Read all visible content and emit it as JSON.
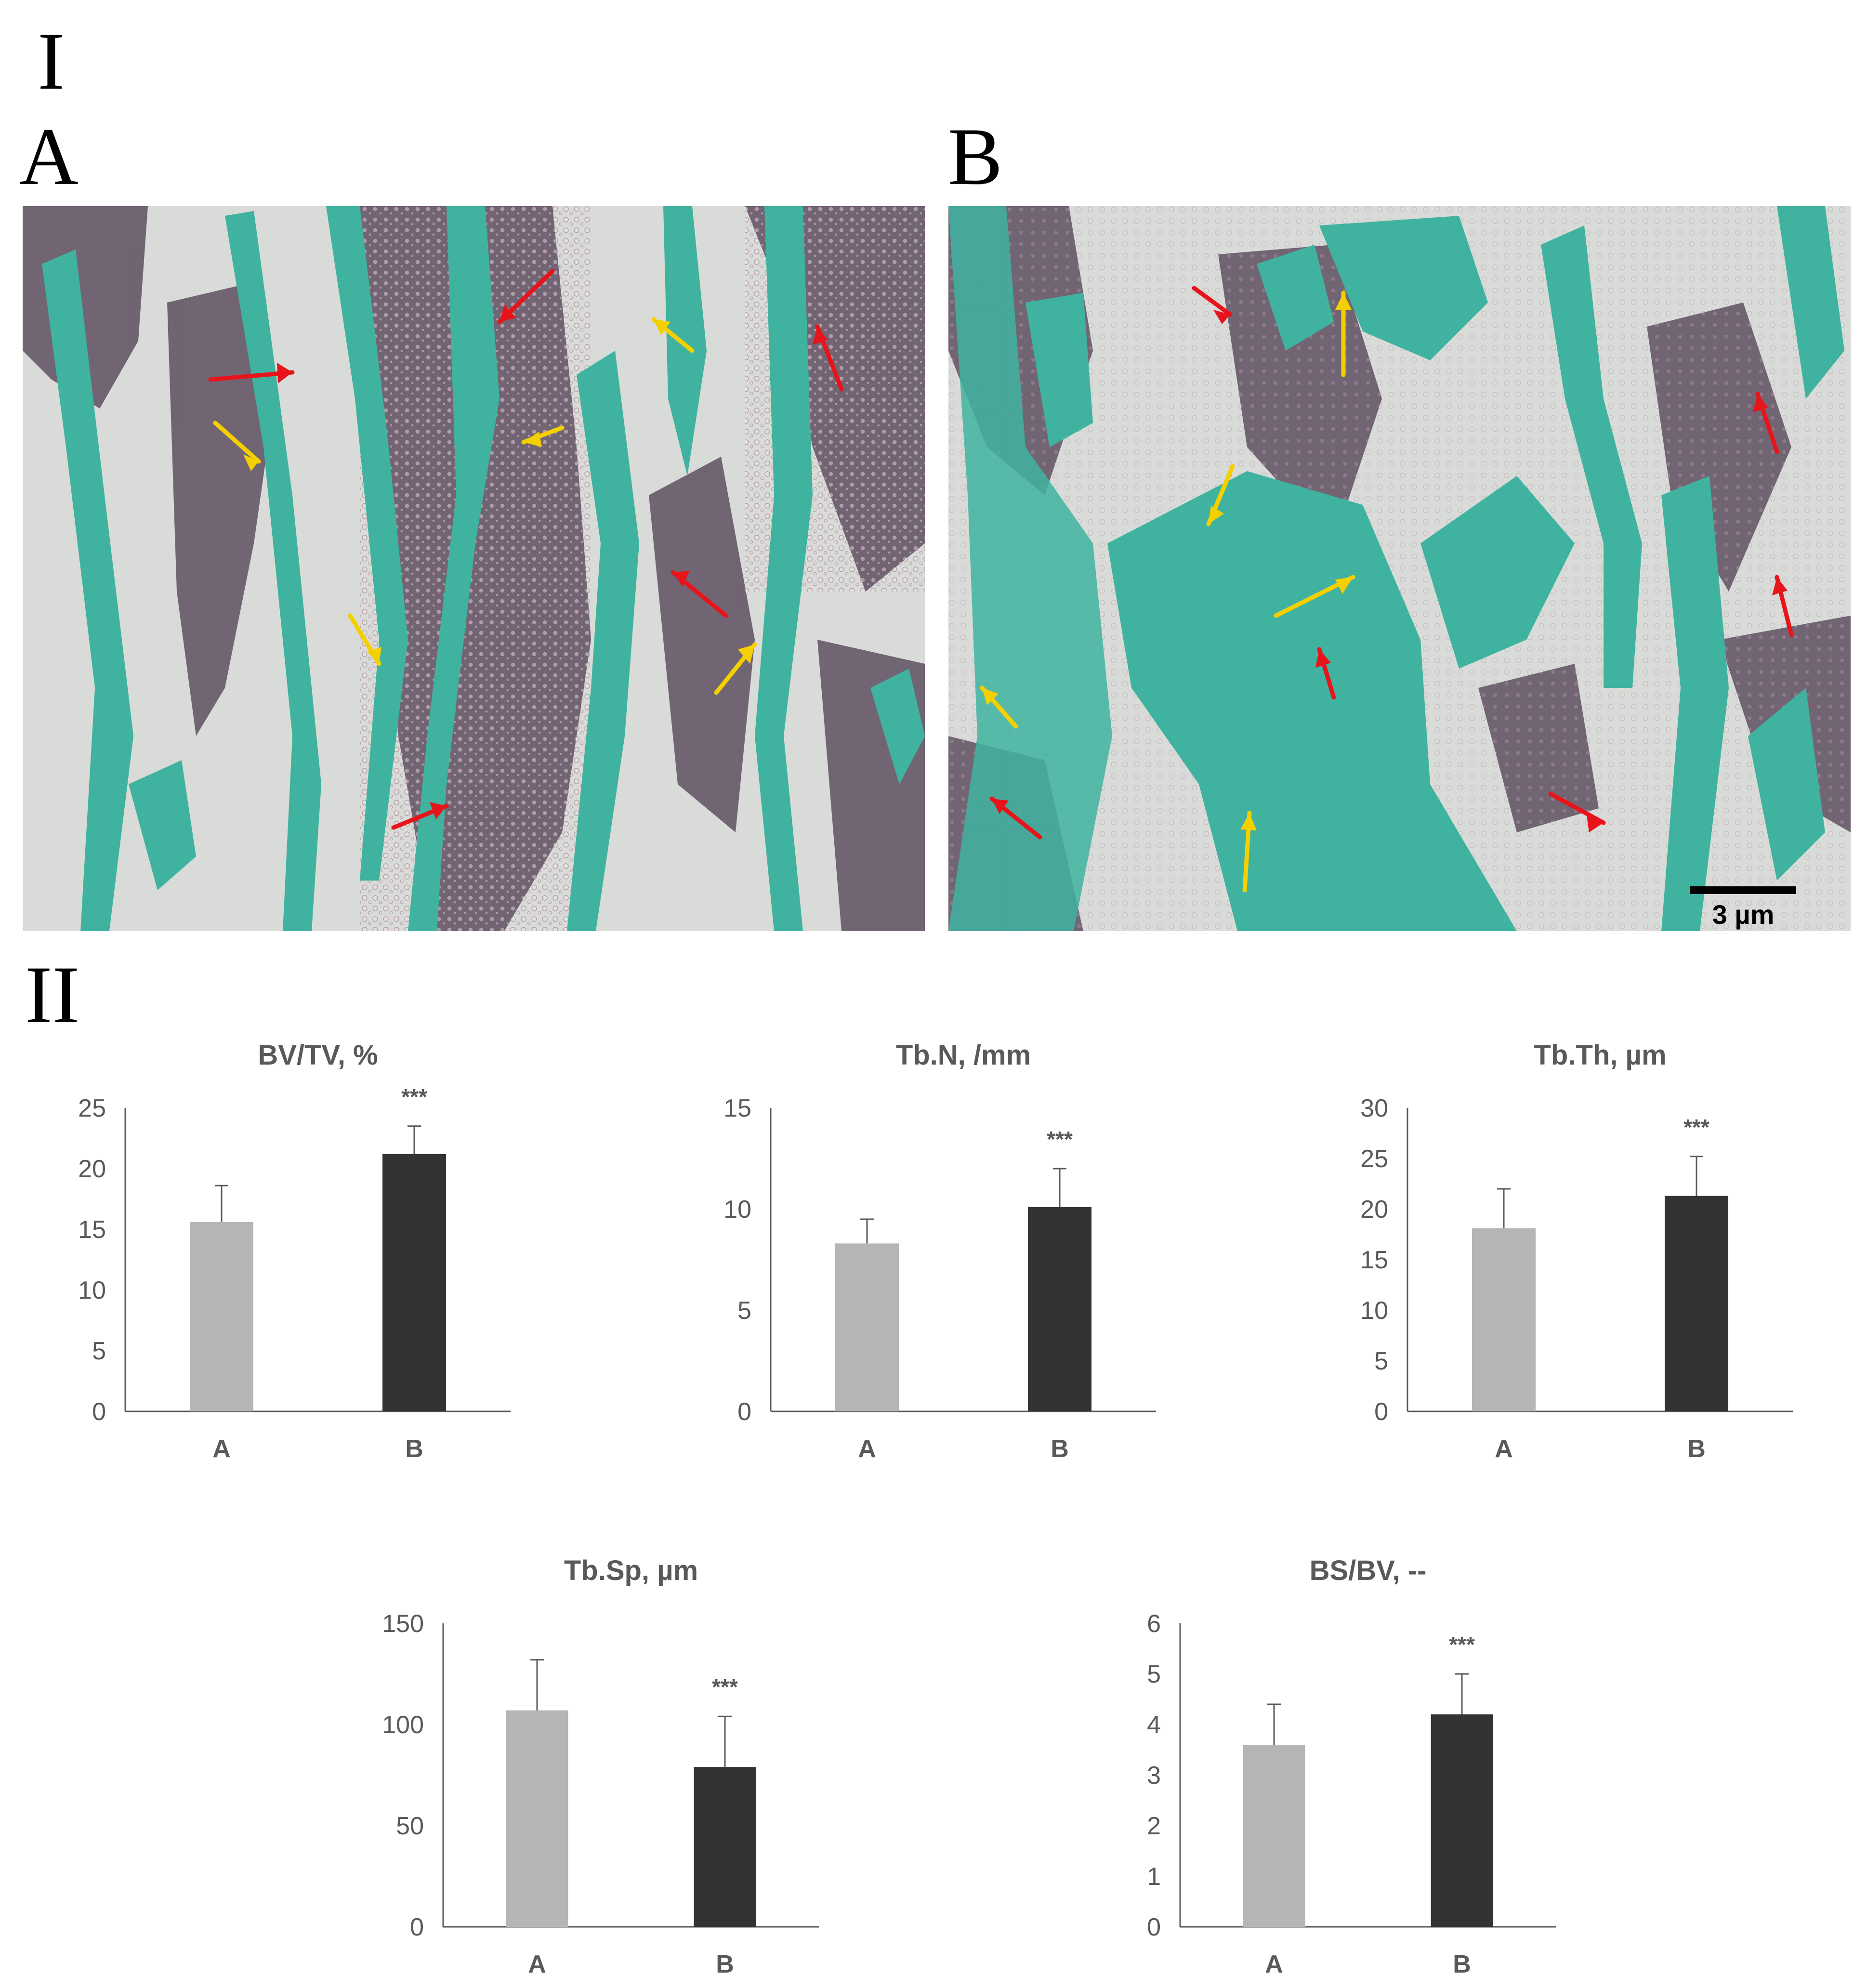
{
  "figure": {
    "part_labels": {
      "I": "I",
      "II": "II"
    },
    "micrographs": [
      {
        "label": "A",
        "scale_bar": ""
      },
      {
        "label": "B",
        "scale_bar": "3 µm"
      }
    ],
    "colors": {
      "bone": "#3fb3a0",
      "marrow": "#5a4a5e",
      "background": "#d9dbd8",
      "arrow_red": "#e8141c",
      "arrow_yellow": "#f5d000",
      "bar_a": "#b5b5b5",
      "bar_b": "#333333",
      "axis": "#595959"
    }
  },
  "chart_data": [
    {
      "type": "bar",
      "title": "BV/TV, %",
      "categories": [
        "A",
        "B"
      ],
      "values": [
        15.6,
        21.2
      ],
      "errors": [
        3.0,
        2.3
      ],
      "yticks": [
        0,
        5,
        10,
        15,
        20,
        25
      ],
      "ylim": [
        0,
        25
      ],
      "significance": "***",
      "significance_on": 1
    },
    {
      "type": "bar",
      "title": "Tb.N, /mm",
      "categories": [
        "A",
        "B"
      ],
      "values": [
        8.3,
        10.1
      ],
      "errors": [
        1.2,
        1.9
      ],
      "yticks": [
        0,
        5,
        10,
        15
      ],
      "ylim": [
        0,
        15
      ],
      "significance": "***",
      "significance_on": 1
    },
    {
      "type": "bar",
      "title": "Tb.Th, µm",
      "categories": [
        "A",
        "B"
      ],
      "values": [
        18.1,
        21.3
      ],
      "errors": [
        3.9,
        3.9
      ],
      "yticks": [
        0,
        5,
        10,
        15,
        20,
        25,
        30
      ],
      "ylim": [
        0,
        30
      ],
      "significance": "***",
      "significance_on": 1
    },
    {
      "type": "bar",
      "title": "Tb.Sp, µm",
      "categories": [
        "A",
        "B"
      ],
      "values": [
        107,
        79
      ],
      "errors": [
        25,
        25
      ],
      "yticks": [
        0,
        50,
        100,
        150
      ],
      "ylim": [
        0,
        150
      ],
      "significance": "***",
      "significance_on": 1
    },
    {
      "type": "bar",
      "title": "BS/BV, --",
      "categories": [
        "A",
        "B"
      ],
      "values": [
        3.6,
        4.2
      ],
      "errors": [
        0.8,
        0.8
      ],
      "yticks": [
        0,
        1,
        2,
        3,
        4,
        5,
        6
      ],
      "ylim": [
        0,
        6
      ],
      "significance": "***",
      "significance_on": 1
    }
  ]
}
